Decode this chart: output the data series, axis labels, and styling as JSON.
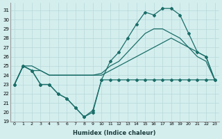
{
  "xlabel": "Humidex (Indice chaleur)",
  "bg_color": "#d4eeee",
  "grid_color": "#b8d8d8",
  "line_color": "#1a6e68",
  "marker": "D",
  "marker_size": 2.0,
  "line_width": 0.9,
  "xlim": [
    -0.5,
    23.5
  ],
  "ylim": [
    19,
    31.8
  ],
  "xticks": [
    0,
    1,
    2,
    3,
    4,
    5,
    6,
    7,
    8,
    9,
    10,
    11,
    12,
    13,
    14,
    15,
    16,
    17,
    18,
    19,
    20,
    21,
    22,
    23
  ],
  "yticks": [
    19,
    20,
    21,
    22,
    23,
    24,
    25,
    26,
    27,
    28,
    29,
    30,
    31
  ],
  "series": [
    {
      "y": [
        23,
        25,
        25,
        24.5,
        24,
        24,
        24,
        24,
        24,
        24,
        24,
        24.5,
        25,
        25.5,
        26,
        26.5,
        27,
        27.5,
        28,
        27.5,
        27,
        26.5,
        26,
        23.5
      ],
      "has_marker": false
    },
    {
      "y": [
        23,
        25,
        24.5,
        24.5,
        24,
        24,
        24,
        24,
        24,
        24,
        24.2,
        25,
        25.5,
        26.5,
        27.5,
        28.5,
        29,
        29,
        28.5,
        28,
        27,
        26,
        25.5,
        23.5
      ],
      "has_marker": false
    },
    {
      "y": [
        23,
        25,
        24.5,
        23,
        23,
        22,
        21.5,
        20.5,
        19.5,
        20,
        23.5,
        25.5,
        26.5,
        28,
        29.5,
        30.8,
        30.5,
        31.2,
        31.2,
        30.5,
        28.5,
        26.5,
        26,
        23.5
      ],
      "has_marker": true
    },
    {
      "y": [
        23,
        25,
        24.5,
        23,
        23,
        22,
        21.5,
        20.5,
        19.5,
        20.2,
        23.5,
        23.5,
        23.5,
        23.5,
        23.5,
        23.5,
        23.5,
        23.5,
        23.5,
        23.5,
        23.5,
        23.5,
        23.5,
        23.5
      ],
      "has_marker": true
    }
  ]
}
